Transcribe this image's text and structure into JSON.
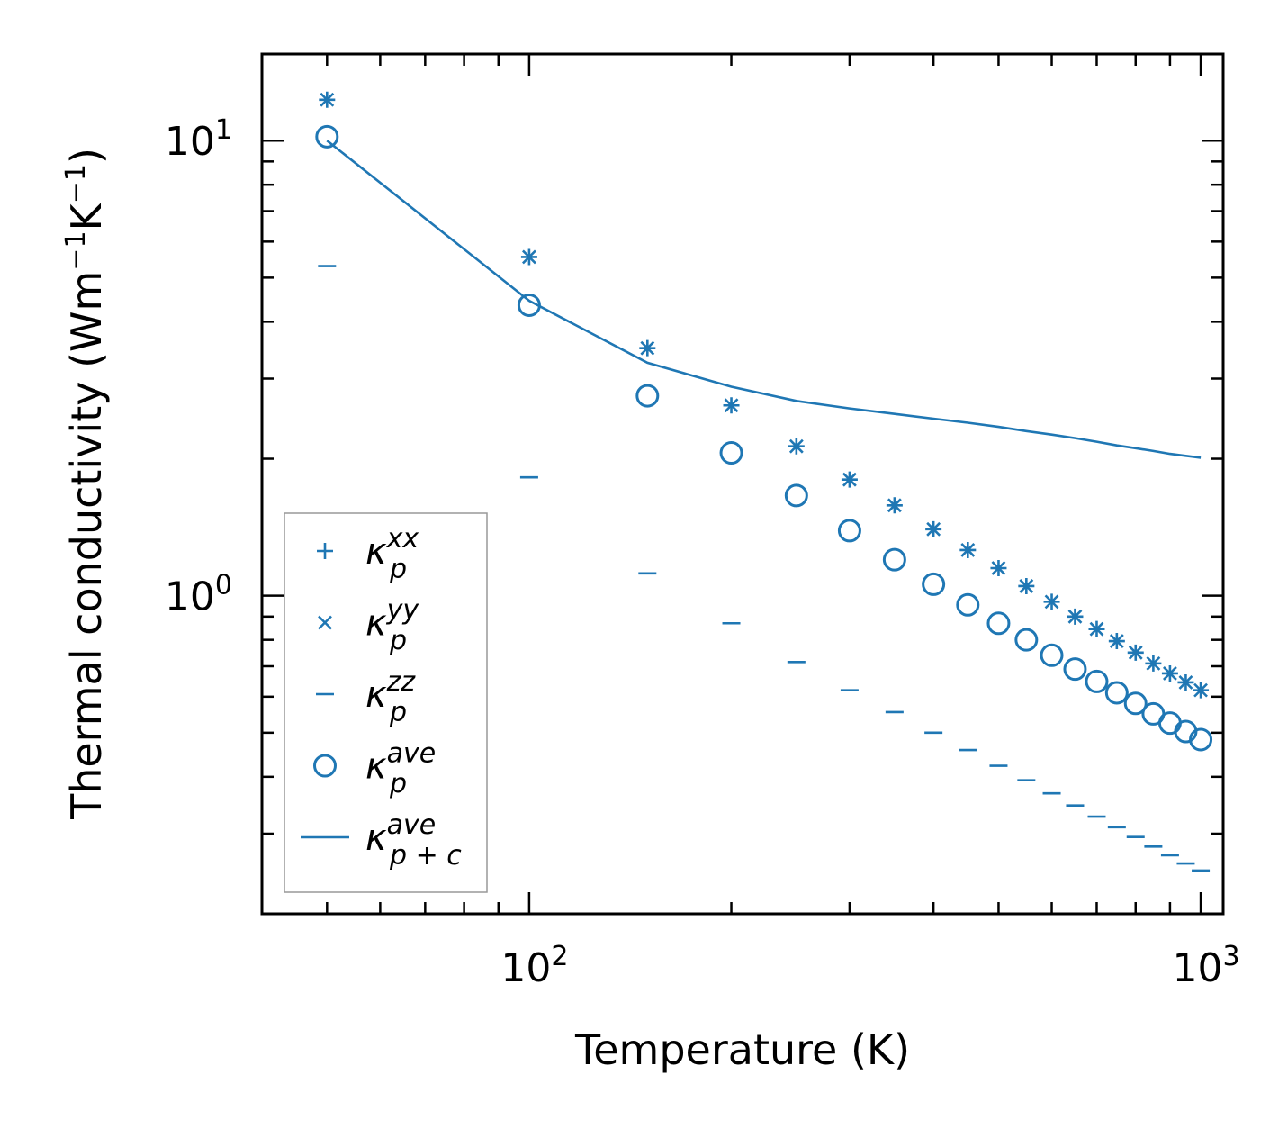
{
  "chart_data": {
    "type": "scatter",
    "scale": {
      "x": "log",
      "y": "log"
    },
    "xlabel": "Temperature (K)",
    "ylabel_prefix": "Thermal conductivity (Wm",
    "ylabel_exp1": "−1",
    "ylabel_mid": "K",
    "ylabel_exp2": "−1",
    "ylabel_suffix": ")",
    "xlim": [
      40,
      1080
    ],
    "ylim": [
      0.2,
      15.5
    ],
    "x_ticks": [
      {
        "value": 100,
        "base": "10",
        "exp": "2"
      },
      {
        "value": 1000,
        "base": "10",
        "exp": "3"
      }
    ],
    "y_ticks": [
      {
        "value": 1,
        "base": "10",
        "exp": "0"
      },
      {
        "value": 10,
        "base": "10",
        "exp": "1"
      }
    ],
    "accent_color": "#1f77b4",
    "x": [
      50,
      100,
      150,
      200,
      250,
      300,
      350,
      400,
      450,
      500,
      550,
      600,
      650,
      700,
      750,
      800,
      850,
      900,
      950,
      1000
    ],
    "series": [
      {
        "name": "kappa_p_xx",
        "marker": "plus",
        "values": [
          12.3,
          5.55,
          3.5,
          2.62,
          2.13,
          1.8,
          1.58,
          1.4,
          1.26,
          1.15,
          1.05,
          0.97,
          0.9,
          0.845,
          0.795,
          0.75,
          0.71,
          0.675,
          0.645,
          0.62
        ]
      },
      {
        "name": "kappa_p_yy",
        "marker": "x",
        "values": [
          12.3,
          5.55,
          3.5,
          2.62,
          2.13,
          1.8,
          1.58,
          1.4,
          1.26,
          1.15,
          1.05,
          0.97,
          0.9,
          0.845,
          0.795,
          0.75,
          0.71,
          0.675,
          0.645,
          0.62
        ]
      },
      {
        "name": "kappa_p_zz",
        "marker": "hline",
        "values": [
          5.3,
          1.82,
          1.12,
          0.87,
          0.715,
          0.62,
          0.555,
          0.5,
          0.458,
          0.423,
          0.393,
          0.368,
          0.346,
          0.327,
          0.31,
          0.295,
          0.281,
          0.269,
          0.258,
          0.249
        ]
      },
      {
        "name": "kappa_p_ave",
        "marker": "circle",
        "values": [
          10.2,
          4.35,
          2.75,
          2.06,
          1.66,
          1.39,
          1.2,
          1.06,
          0.955,
          0.87,
          0.8,
          0.74,
          0.69,
          0.648,
          0.612,
          0.58,
          0.55,
          0.525,
          0.503,
          0.483
        ]
      },
      {
        "name": "kappa_p+c_ave",
        "marker": "line",
        "values": [
          10.0,
          4.45,
          3.25,
          2.88,
          2.68,
          2.58,
          2.51,
          2.45,
          2.4,
          2.35,
          2.3,
          2.26,
          2.22,
          2.18,
          2.14,
          2.11,
          2.08,
          2.05,
          2.03,
          2.01
        ]
      }
    ],
    "legend": {
      "position": "lower-left",
      "entries": [
        {
          "marker": "plus",
          "symbol": "κ",
          "sub": "p",
          "sup": "xx"
        },
        {
          "marker": "x",
          "symbol": "κ",
          "sub": "p",
          "sup": "yy"
        },
        {
          "marker": "hline",
          "symbol": "κ",
          "sub": "p",
          "sup": "zz"
        },
        {
          "marker": "circle",
          "symbol": "κ",
          "sub": "p",
          "sup": "ave"
        },
        {
          "marker": "line",
          "symbol": "κ",
          "sub": "p + c",
          "sup": "ave"
        }
      ]
    },
    "grid": false
  }
}
